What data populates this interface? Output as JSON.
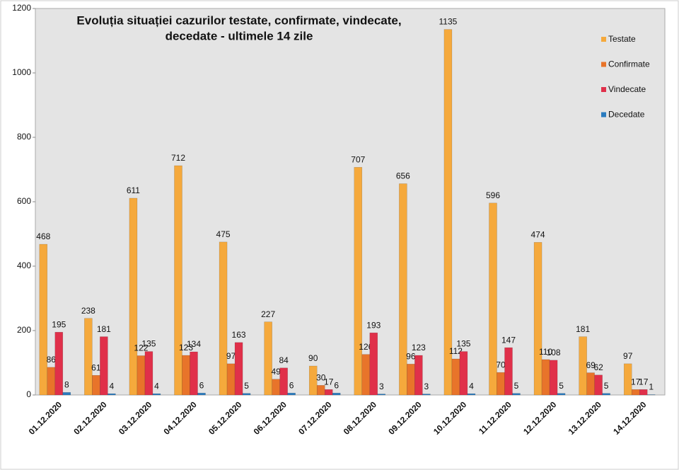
{
  "chart_data": {
    "type": "bar",
    "title": [
      "Evoluția situației cazurilor testate, confirmate, vindecate,",
      "decedate -  ultimele 14 zile"
    ],
    "categories": [
      "01.12.2020",
      "02.12.2020",
      "03.12.2020",
      "04.12.2020",
      "05.12.2020",
      "06.12.2020",
      "07.12.2020",
      "08.12.2020",
      "09.12.2020",
      "10.12.2020",
      "11.12.2020",
      "12.12.2020",
      "13.12.2020",
      "14.12.2020"
    ],
    "series": [
      {
        "name": "Testate",
        "color": "#f5a93c",
        "values": [
          468,
          238,
          611,
          712,
          475,
          227,
          90,
          707,
          656,
          1135,
          596,
          474,
          181,
          97
        ]
      },
      {
        "name": "Confirmate",
        "color": "#e8742a",
        "values": [
          86,
          61,
          122,
          123,
          97,
          49,
          30,
          126,
          96,
          112,
          70,
          110,
          69,
          17
        ]
      },
      {
        "name": "Vindecate",
        "color": "#e0304a",
        "values": [
          195,
          181,
          135,
          134,
          163,
          84,
          17,
          193,
          123,
          135,
          147,
          108,
          62,
          17
        ]
      },
      {
        "name": "Decedate",
        "color": "#2a7bbf",
        "values": [
          8,
          4,
          4,
          6,
          5,
          6,
          6,
          3,
          3,
          4,
          5,
          5,
          5,
          1
        ]
      }
    ],
    "ylim": [
      0,
      1200
    ],
    "yticks": [
      0,
      200,
      400,
      600,
      800,
      1000,
      1200
    ],
    "grid": false,
    "legend": "upper right"
  }
}
